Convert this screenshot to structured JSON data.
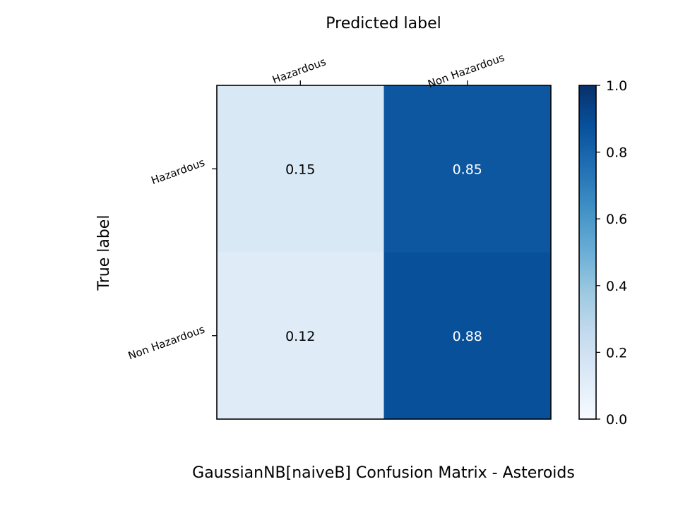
{
  "chart_data": {
    "type": "heatmap",
    "title": "GaussianNB[naiveB]  Confusion Matrix - Asteroids",
    "xlabel": "Predicted label",
    "ylabel": "True label",
    "x_categories": [
      "Hazardous",
      "Non Hazardous"
    ],
    "y_categories": [
      "Hazardous",
      "Non Hazardous"
    ],
    "values": [
      [
        0.15,
        0.85
      ],
      [
        0.12,
        0.88
      ]
    ],
    "cell_labels": [
      [
        "0.15",
        "0.85"
      ],
      [
        "0.12",
        "0.88"
      ]
    ],
    "colormap": "Blues",
    "colorbar": {
      "range": [
        0.0,
        1.0
      ],
      "ticks": [
        "0.0",
        "0.2",
        "0.4",
        "0.6",
        "0.8",
        "1.0"
      ]
    },
    "grid": false
  }
}
